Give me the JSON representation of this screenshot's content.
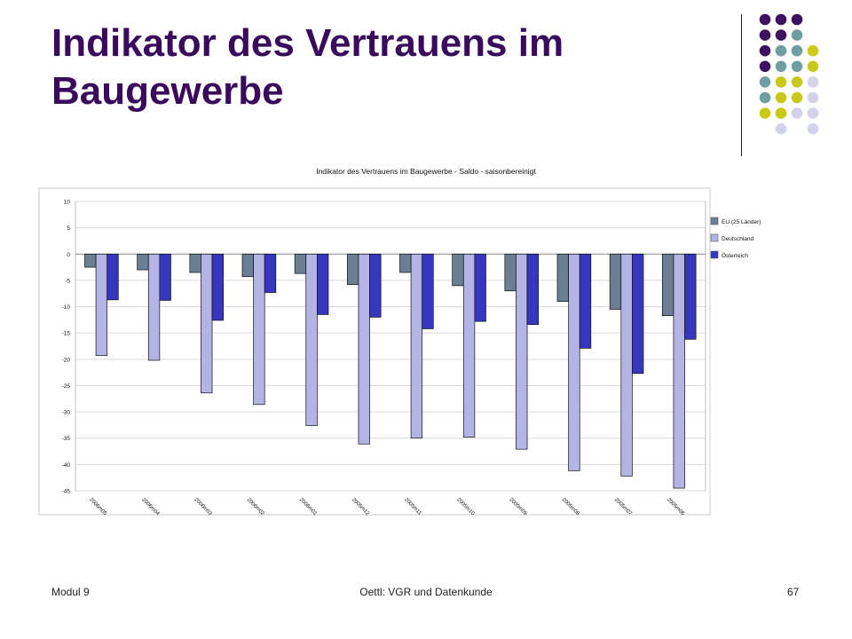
{
  "slide": {
    "title": "Indikator des Vertrauens im Baugewerbe",
    "footer_left": "Modul 9",
    "footer_center": "Oettl: VGR und Datenkunde",
    "footer_right": "67"
  },
  "theme": {
    "title_color": "#3a0a5c",
    "dot_colors": {
      "purple": "#3d1060",
      "teal": "#6e9ea0",
      "yellow": "#c9c91c",
      "lavender": "#d2d2ea"
    }
  },
  "decor_dots": [
    [
      "purple",
      "purple",
      "purple",
      ""
    ],
    [
      "purple",
      "purple",
      "teal",
      ""
    ],
    [
      "purple",
      "teal",
      "teal",
      "yellow"
    ],
    [
      "purple",
      "teal",
      "teal",
      "yellow"
    ],
    [
      "teal",
      "yellow",
      "yellow",
      "lavender"
    ],
    [
      "teal",
      "yellow",
      "yellow",
      "lavender"
    ],
    [
      "yellow",
      "yellow",
      "lavender",
      "lavender"
    ],
    [
      "",
      "lavender",
      "",
      "lavender"
    ]
  ],
  "chart_data": {
    "type": "bar",
    "title": "Indikator des Vertrauens im Baugewerbe - Saldo - saisonbereinigt",
    "categories": [
      "2006m05",
      "2006m04",
      "2006m03",
      "2006m02",
      "2006m01",
      "2005m12",
      "2005m11",
      "2005m10",
      "2005m09",
      "2005m08",
      "2005m07",
      "2005m06"
    ],
    "series": [
      {
        "name": "EU (25 Länder)",
        "color": "#6a7f93",
        "values": [
          -2.5,
          -3,
          -3.5,
          -4.3,
          -3.7,
          -5.8,
          -3.5,
          -6,
          -7,
          -9,
          -10.5,
          -11.7
        ]
      },
      {
        "name": "Deutschland",
        "color": "#b3b3e6",
        "values": [
          -19.3,
          -20.2,
          -26.4,
          -28.6,
          -32.6,
          -36.1,
          -35,
          -34.8,
          -37.1,
          -41.2,
          -42.2,
          -44.5
        ]
      },
      {
        "name": "Österreich",
        "color": "#3636bf",
        "values": [
          -8.7,
          -8.8,
          -12.6,
          -7.3,
          -11.5,
          -12,
          -14.2,
          -12.8,
          -13.4,
          -17.9,
          -22.7,
          -16.2
        ]
      }
    ],
    "ylim": [
      -45,
      10
    ],
    "yticks": [
      10,
      5,
      0,
      -5,
      -10,
      -15,
      -20,
      -25,
      -30,
      -35,
      -40,
      -45
    ],
    "grid": "horizontal",
    "legend_position": "right"
  }
}
